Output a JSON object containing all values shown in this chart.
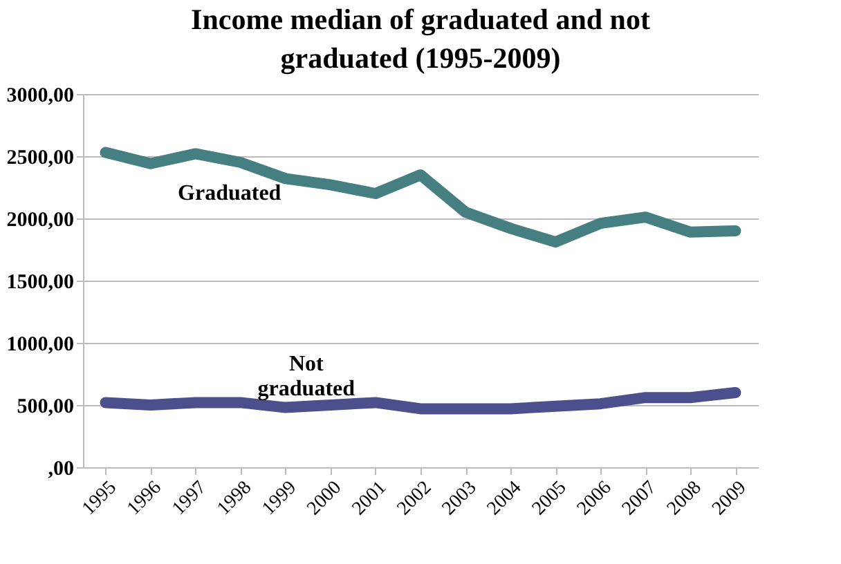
{
  "chart_data": {
    "type": "line",
    "title": "Income median of graduated and not graduated (1995-2009)",
    "categories": [
      "1995",
      "1996",
      "1997",
      "1998",
      "1999",
      "2000",
      "2001",
      "2002",
      "2003",
      "2004",
      "2005",
      "2006",
      "2007",
      "2008",
      "2009"
    ],
    "series": [
      {
        "name": "Graduated",
        "color": "#467f82",
        "values": [
          2530,
          2440,
          2520,
          2450,
          2320,
          2270,
          2200,
          2350,
          2050,
          1920,
          1810,
          1960,
          2010,
          1890,
          1900
        ]
      },
      {
        "name": "Not graduated",
        "color": "#4b4f8c",
        "values": [
          520,
          500,
          520,
          520,
          480,
          500,
          520,
          470,
          470,
          470,
          490,
          510,
          560,
          560,
          600
        ]
      }
    ],
    "ylim": [
      0,
      3000
    ],
    "yticks": [
      {
        "value": 0,
        "label": ",00"
      },
      {
        "value": 500,
        "label": "500,00"
      },
      {
        "value": 1000,
        "label": "1000,00"
      },
      {
        "value": 1500,
        "label": "1500,00"
      },
      {
        "value": 2000,
        "label": "2000,00"
      },
      {
        "value": 2500,
        "label": "2500,00"
      },
      {
        "value": 3000,
        "label": "3000,00"
      }
    ],
    "grid": "y",
    "legend": false,
    "marker": "none",
    "line_style": "solid"
  }
}
